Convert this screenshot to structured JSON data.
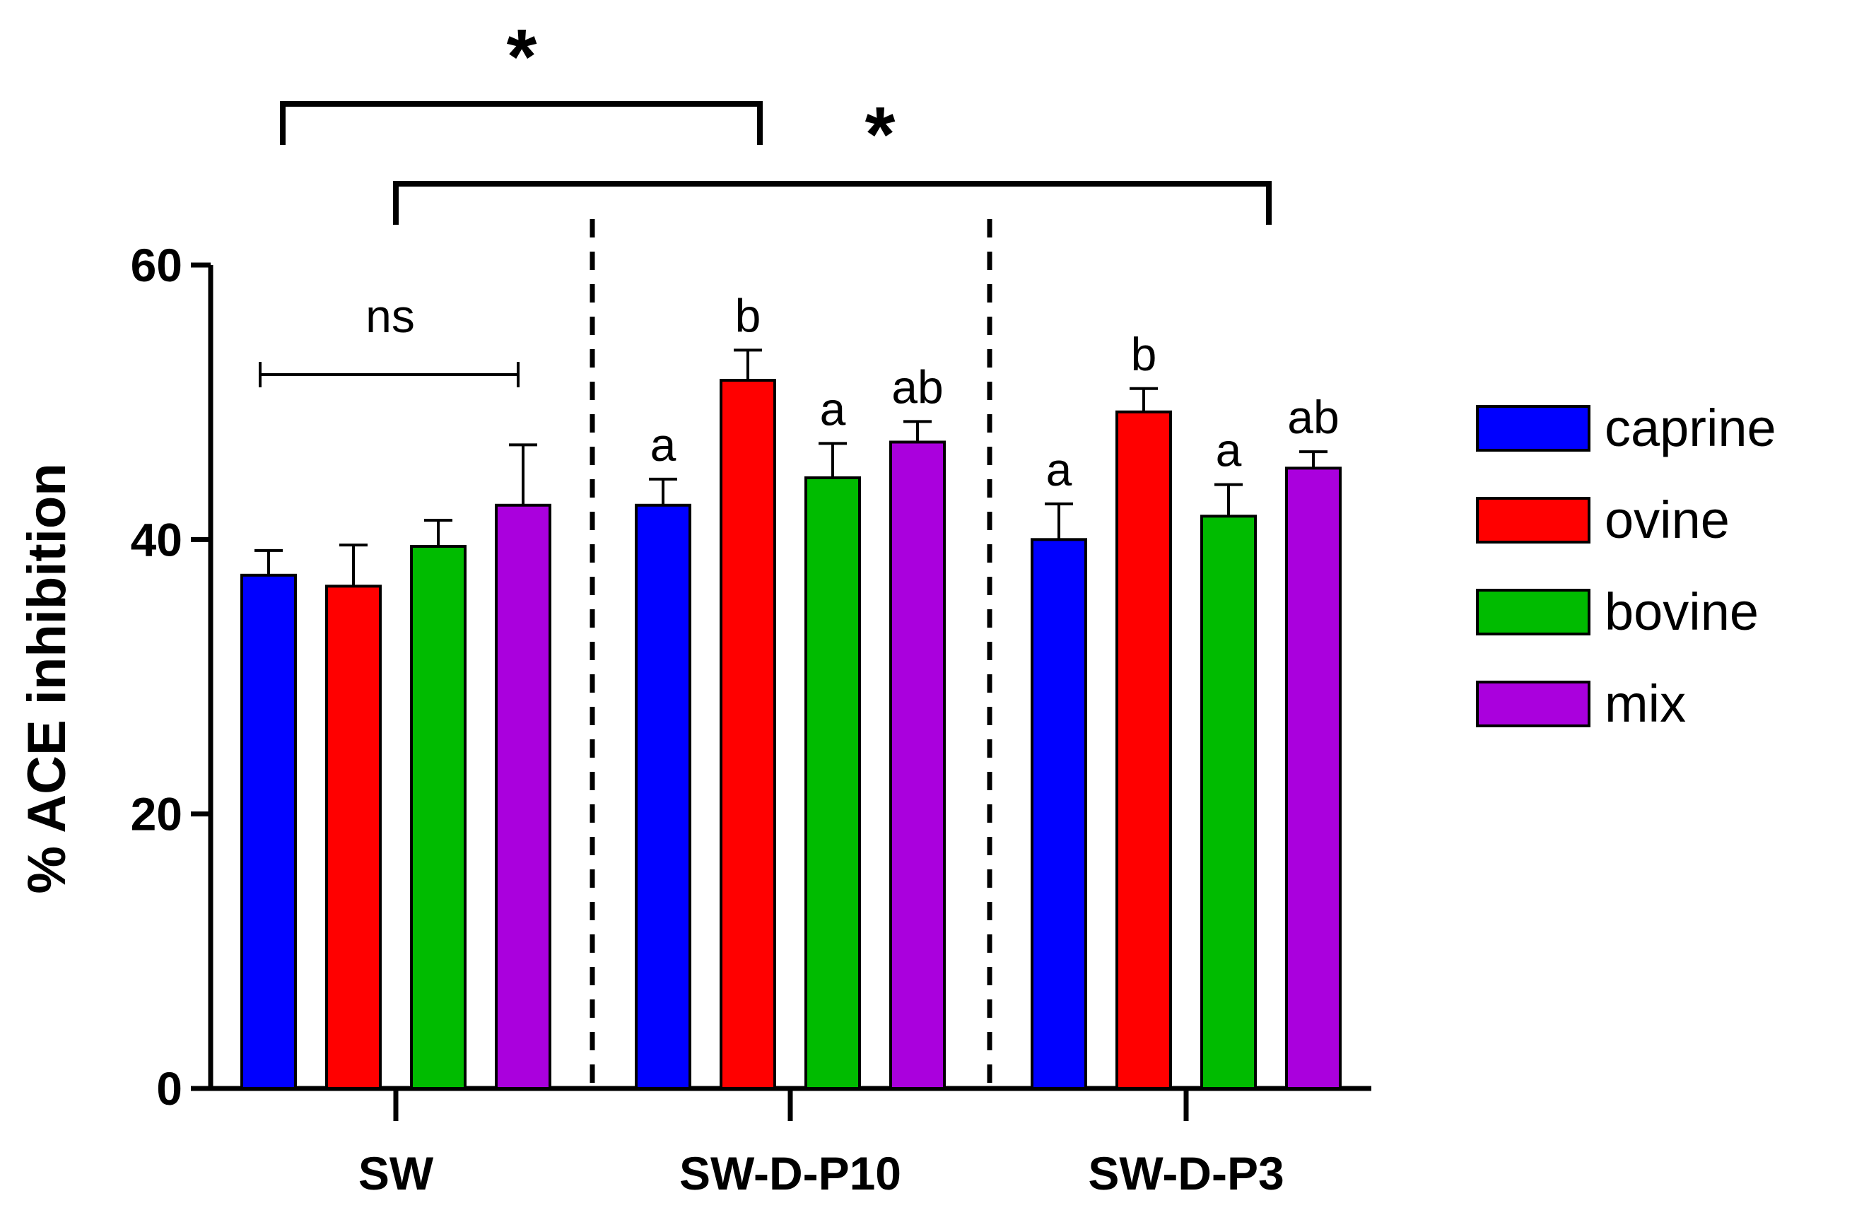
{
  "chart_data": {
    "type": "bar",
    "title": "",
    "xlabel": "",
    "ylabel": "% ACE inhibition",
    "ylim": [
      0,
      60
    ],
    "yticks": [
      0,
      20,
      40,
      60
    ],
    "categories": [
      "SW",
      "SW-D-P10",
      "SW-D-P3"
    ],
    "series": [
      {
        "name": "caprine",
        "color": "#0000ff",
        "values": [
          37.4,
          42.5,
          40.0
        ],
        "errors": [
          1.8,
          1.9,
          2.6
        ],
        "letters": [
          "",
          "a",
          "a"
        ]
      },
      {
        "name": "ovine",
        "color": "#ff0000",
        "values": [
          36.6,
          51.6,
          49.3
        ],
        "errors": [
          3.0,
          2.2,
          1.7
        ],
        "letters": [
          "",
          "b",
          "b"
        ]
      },
      {
        "name": "bovine",
        "color": "#00bb00",
        "values": [
          39.5,
          44.5,
          41.7
        ],
        "errors": [
          1.9,
          2.5,
          2.3
        ],
        "letters": [
          "",
          "a",
          "a"
        ]
      },
      {
        "name": "mix",
        "color": "#aa00dd",
        "values": [
          42.5,
          47.1,
          45.2
        ],
        "errors": [
          4.4,
          1.5,
          1.2
        ],
        "letters": [
          "",
          "ab",
          "ab"
        ]
      }
    ],
    "annotations": {
      "sw_within": "ns",
      "sw_vs_p10": "*",
      "sw_vs_p3": "*"
    },
    "legend_position": "right"
  }
}
